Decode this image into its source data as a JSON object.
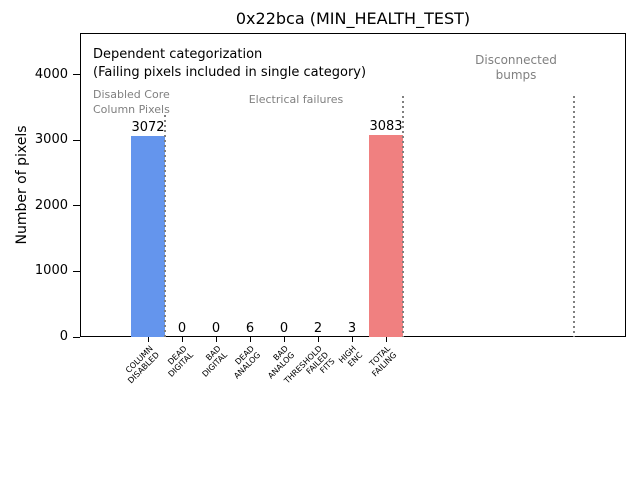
{
  "chart_data": {
    "type": "bar",
    "title": "0x22bca (MIN_HEALTH_TEST)",
    "xlabel": "",
    "ylabel": "Number of pixels",
    "ylim": [
      0,
      4640
    ],
    "yticks": [
      0,
      1000,
      2000,
      3000,
      4000
    ],
    "grid": false,
    "legend": false,
    "bars": [
      {
        "category": "COLUMN\nDISABLED",
        "value": 3072,
        "color": "#6495ed"
      },
      {
        "category": "DEAD\nDIGITAL",
        "value": 0,
        "color": null
      },
      {
        "category": "BAD\nDIGITAL",
        "value": 0,
        "color": null
      },
      {
        "category": "DEAD\nANALOG",
        "value": 6,
        "color": null
      },
      {
        "category": "BAD\nANALOG",
        "value": 0,
        "color": null
      },
      {
        "category": "THRESHOLD\nFAILED\nFITS",
        "value": 2,
        "color": null
      },
      {
        "category": "HIGH\nENC",
        "value": 3,
        "color": null
      },
      {
        "category": "TOTAL\nFAILING",
        "value": 3083,
        "color": "#f08080"
      }
    ],
    "annotations": {
      "note_line1": "Dependent categorization",
      "note_line2": "(Failing pixels included in single category)",
      "group_labels": [
        {
          "text": "Disabled Core\nColumn Pixels"
        },
        {
          "text": "Electrical failures"
        },
        {
          "text": "Disconnected\nbumps"
        }
      ],
      "text_color": "#808080"
    },
    "colors": {
      "bar_blue": "#6495ed",
      "bar_red": "#f08080",
      "divider_gray": "#808080",
      "background": "#ffffff"
    },
    "divider_style": "dotted"
  }
}
